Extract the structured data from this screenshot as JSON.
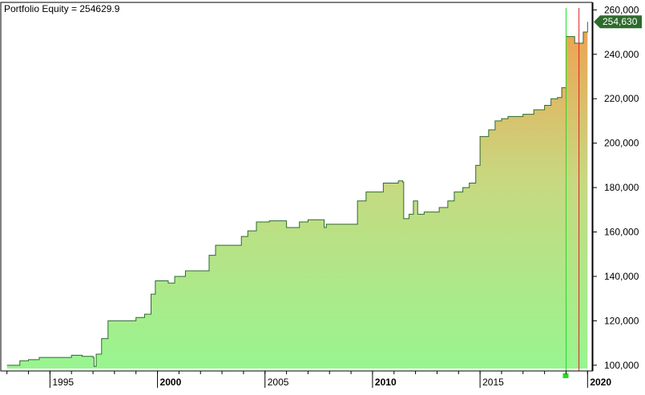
{
  "chart_data": {
    "type": "area",
    "title": "Portfolio Equity = 254629.9",
    "last_value_label": "254,630",
    "xlabel": "",
    "ylabel": "",
    "x_ticks": [
      {
        "label": "1995",
        "year": 1995,
        "bold": false
      },
      {
        "label": "2000",
        "year": 2000,
        "bold": true
      },
      {
        "label": "2005",
        "year": 2005,
        "bold": false
      },
      {
        "label": "2010",
        "year": 2010,
        "bold": true
      },
      {
        "label": "2015",
        "year": 2015,
        "bold": false
      },
      {
        "label": "2020",
        "year": 2020,
        "bold": true
      }
    ],
    "y_ticks": [
      100000,
      120000,
      140000,
      160000,
      180000,
      200000,
      220000,
      240000,
      260000
    ],
    "xlim": [
      1992.9,
      2020.1
    ],
    "ylim": [
      98500,
      263000
    ],
    "grid": false,
    "colors": {
      "fill_low": "#98f590",
      "fill_mid": "#c8d880",
      "fill_high": "#f0a050",
      "line": "#2d6b2d",
      "marker_green": "#22dd22",
      "marker_red": "#dd2222",
      "axis": "#000000",
      "value_label_bg": "#2d6b2d"
    },
    "markers": [
      {
        "type": "green-vertical",
        "x": 2019.0
      },
      {
        "type": "red-vertical",
        "x": 2019.6
      }
    ],
    "series": [
      {
        "name": "Portfolio Equity",
        "points": [
          [
            1993.0,
            100000
          ],
          [
            1993.4,
            100000
          ],
          [
            1993.6,
            102000
          ],
          [
            1994.0,
            102500
          ],
          [
            1994.5,
            103500
          ],
          [
            1995.5,
            103500
          ],
          [
            1996.0,
            104500
          ],
          [
            1996.5,
            104000
          ],
          [
            1997.0,
            103500
          ],
          [
            1997.05,
            99500
          ],
          [
            1997.15,
            105000
          ],
          [
            1997.4,
            112000
          ],
          [
            1997.7,
            120000
          ],
          [
            1998.8,
            120000
          ],
          [
            1999.0,
            121500
          ],
          [
            1999.4,
            123000
          ],
          [
            1999.7,
            132000
          ],
          [
            1999.9,
            138000
          ],
          [
            2000.5,
            137000
          ],
          [
            2000.8,
            140000
          ],
          [
            2001.3,
            142500
          ],
          [
            2002.0,
            142500
          ],
          [
            2002.4,
            149500
          ],
          [
            2002.7,
            154000
          ],
          [
            2003.8,
            154000
          ],
          [
            2003.9,
            158000
          ],
          [
            2004.2,
            160500
          ],
          [
            2004.6,
            164500
          ],
          [
            2005.2,
            165000
          ],
          [
            2005.9,
            165000
          ],
          [
            2006.0,
            162000
          ],
          [
            2006.6,
            164500
          ],
          [
            2007.0,
            165500
          ],
          [
            2007.6,
            165500
          ],
          [
            2007.75,
            162000
          ],
          [
            2007.85,
            163500
          ],
          [
            2008.4,
            163500
          ],
          [
            2009.2,
            163500
          ],
          [
            2009.3,
            174000
          ],
          [
            2009.7,
            178000
          ],
          [
            2010.1,
            178000
          ],
          [
            2010.5,
            182000
          ],
          [
            2011.0,
            182000
          ],
          [
            2011.2,
            183000
          ],
          [
            2011.4,
            182500
          ],
          [
            2011.45,
            166000
          ],
          [
            2011.7,
            168000
          ],
          [
            2011.9,
            174000
          ],
          [
            2012.1,
            168000
          ],
          [
            2012.4,
            169000
          ],
          [
            2012.9,
            169000
          ],
          [
            2013.1,
            171000
          ],
          [
            2013.5,
            174000
          ],
          [
            2013.8,
            178000
          ],
          [
            2014.2,
            180000
          ],
          [
            2014.5,
            182000
          ],
          [
            2014.8,
            190000
          ],
          [
            2015.0,
            203000
          ],
          [
            2015.4,
            206000
          ],
          [
            2015.7,
            210000
          ],
          [
            2016.0,
            211000
          ],
          [
            2016.3,
            212000
          ],
          [
            2017.0,
            213000
          ],
          [
            2017.5,
            215000
          ],
          [
            2018.0,
            217000
          ],
          [
            2018.3,
            220000
          ],
          [
            2018.6,
            220500
          ],
          [
            2018.8,
            225000
          ],
          [
            2019.0,
            248000
          ],
          [
            2019.3,
            248000
          ],
          [
            2019.4,
            245000
          ],
          [
            2019.7,
            245000
          ],
          [
            2019.8,
            250000
          ],
          [
            2020.0,
            254629.9
          ]
        ]
      }
    ]
  }
}
